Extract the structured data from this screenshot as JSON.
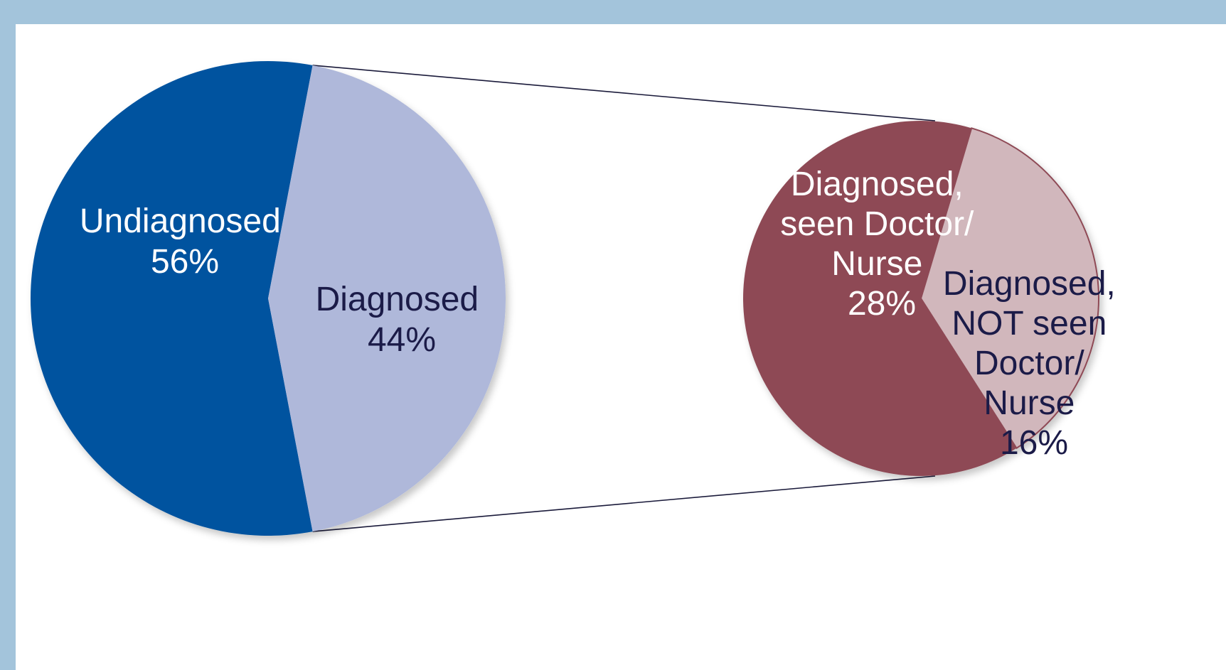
{
  "colors": {
    "background": "#a3c4db",
    "connector": "#1a1a3a",
    "undiagnosed": "#00539f",
    "diagnosed": "#afb8da",
    "seen": "#8e4a55",
    "not_seen": "#d1b7bc",
    "label_light": "#ffffff",
    "label_dark": "#1b1b48"
  },
  "chart_data": {
    "type": "pie",
    "subtype": "pie-of-pie",
    "main_pie": {
      "slices": [
        {
          "label": "Undiagnosed",
          "value": 56,
          "value_text": "56%"
        },
        {
          "label": "Diagnosed",
          "value": 44,
          "value_text": "44%"
        }
      ]
    },
    "secondary_pie": {
      "expands": "Diagnosed",
      "slices": [
        {
          "label_lines": [
            "Diagnosed,",
            "seen Doctor/",
            "Nurse"
          ],
          "value": 28,
          "value_text": "28%"
        },
        {
          "label_lines": [
            "Diagnosed,",
            "NOT seen",
            "Doctor/",
            "Nurse"
          ],
          "value": 16,
          "value_text": "16%"
        }
      ]
    }
  }
}
